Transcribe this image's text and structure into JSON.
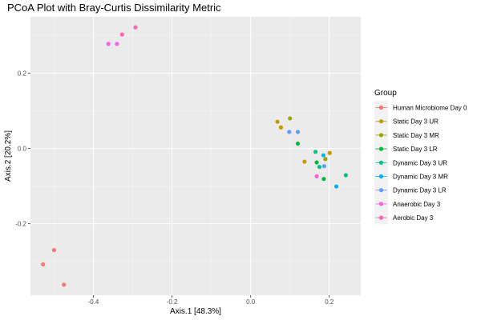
{
  "chart_data": {
    "type": "scatter",
    "title": "PCoA Plot with Bray-Curtis Dissimilarity Metric",
    "xlabel": "Axis.1   [48.3%]",
    "ylabel": "Axis.2   [20.2%]",
    "xlim": [
      -0.56,
      0.28
    ],
    "ylim": [
      -0.39,
      0.35
    ],
    "x_ticks": [
      -0.4,
      -0.2,
      0.0,
      0.2
    ],
    "x_tick_labels": [
      "-0.4",
      "-0.2",
      "0.0",
      "0.2"
    ],
    "y_ticks": [
      -0.2,
      0.0,
      0.2
    ],
    "y_tick_labels": [
      "-0.2",
      "0.0",
      "0.2"
    ],
    "grid": true,
    "legend": {
      "title": "Group",
      "position": "right"
    },
    "series": [
      {
        "name": "Human Microbiome Day 0",
        "color": "#F8766D",
        "points": [
          [
            -0.5,
            -0.27
          ],
          [
            -0.528,
            -0.308
          ],
          [
            -0.475,
            -0.362
          ]
        ]
      },
      {
        "name": "Static Day 3 UR",
        "color": "#C49A00",
        "points": [
          [
            0.068,
            0.071
          ],
          [
            0.077,
            0.056
          ],
          [
            0.137,
            -0.035
          ],
          [
            0.201,
            -0.012
          ]
        ]
      },
      {
        "name": "Static Day 3 MR",
        "color": "#99A800",
        "points": [
          [
            0.1,
            0.08
          ],
          [
            0.19,
            -0.028
          ]
        ]
      },
      {
        "name": "Static Day 3 LR",
        "color": "#00BA38",
        "points": [
          [
            0.12,
            0.013
          ],
          [
            0.168,
            -0.037
          ],
          [
            0.186,
            -0.081
          ]
        ]
      },
      {
        "name": "Dynamic Day 3 UR",
        "color": "#00C08B",
        "points": [
          [
            0.165,
            -0.009
          ],
          [
            0.175,
            -0.049
          ],
          [
            0.242,
            -0.071
          ]
        ]
      },
      {
        "name": "Dynamic Day 3 MR",
        "color": "#00B4F0",
        "points": [
          [
            0.185,
            -0.018
          ],
          [
            0.218,
            -0.101
          ]
        ]
      },
      {
        "name": "Dynamic Day 3 LR",
        "color": "#619CFF",
        "points": [
          [
            0.098,
            0.044
          ],
          [
            0.12,
            0.044
          ],
          [
            0.187,
            -0.047
          ]
        ]
      },
      {
        "name": "Anaerobic Day 3",
        "color": "#F564E3",
        "points": [
          [
            0.168,
            -0.074
          ],
          [
            -0.362,
            0.278
          ],
          [
            -0.34,
            0.278
          ]
        ]
      },
      {
        "name": "Aerobic Day 3",
        "color": "#FF64B0",
        "points": [
          [
            -0.327,
            0.303
          ],
          [
            -0.293,
            0.322
          ]
        ]
      }
    ]
  }
}
